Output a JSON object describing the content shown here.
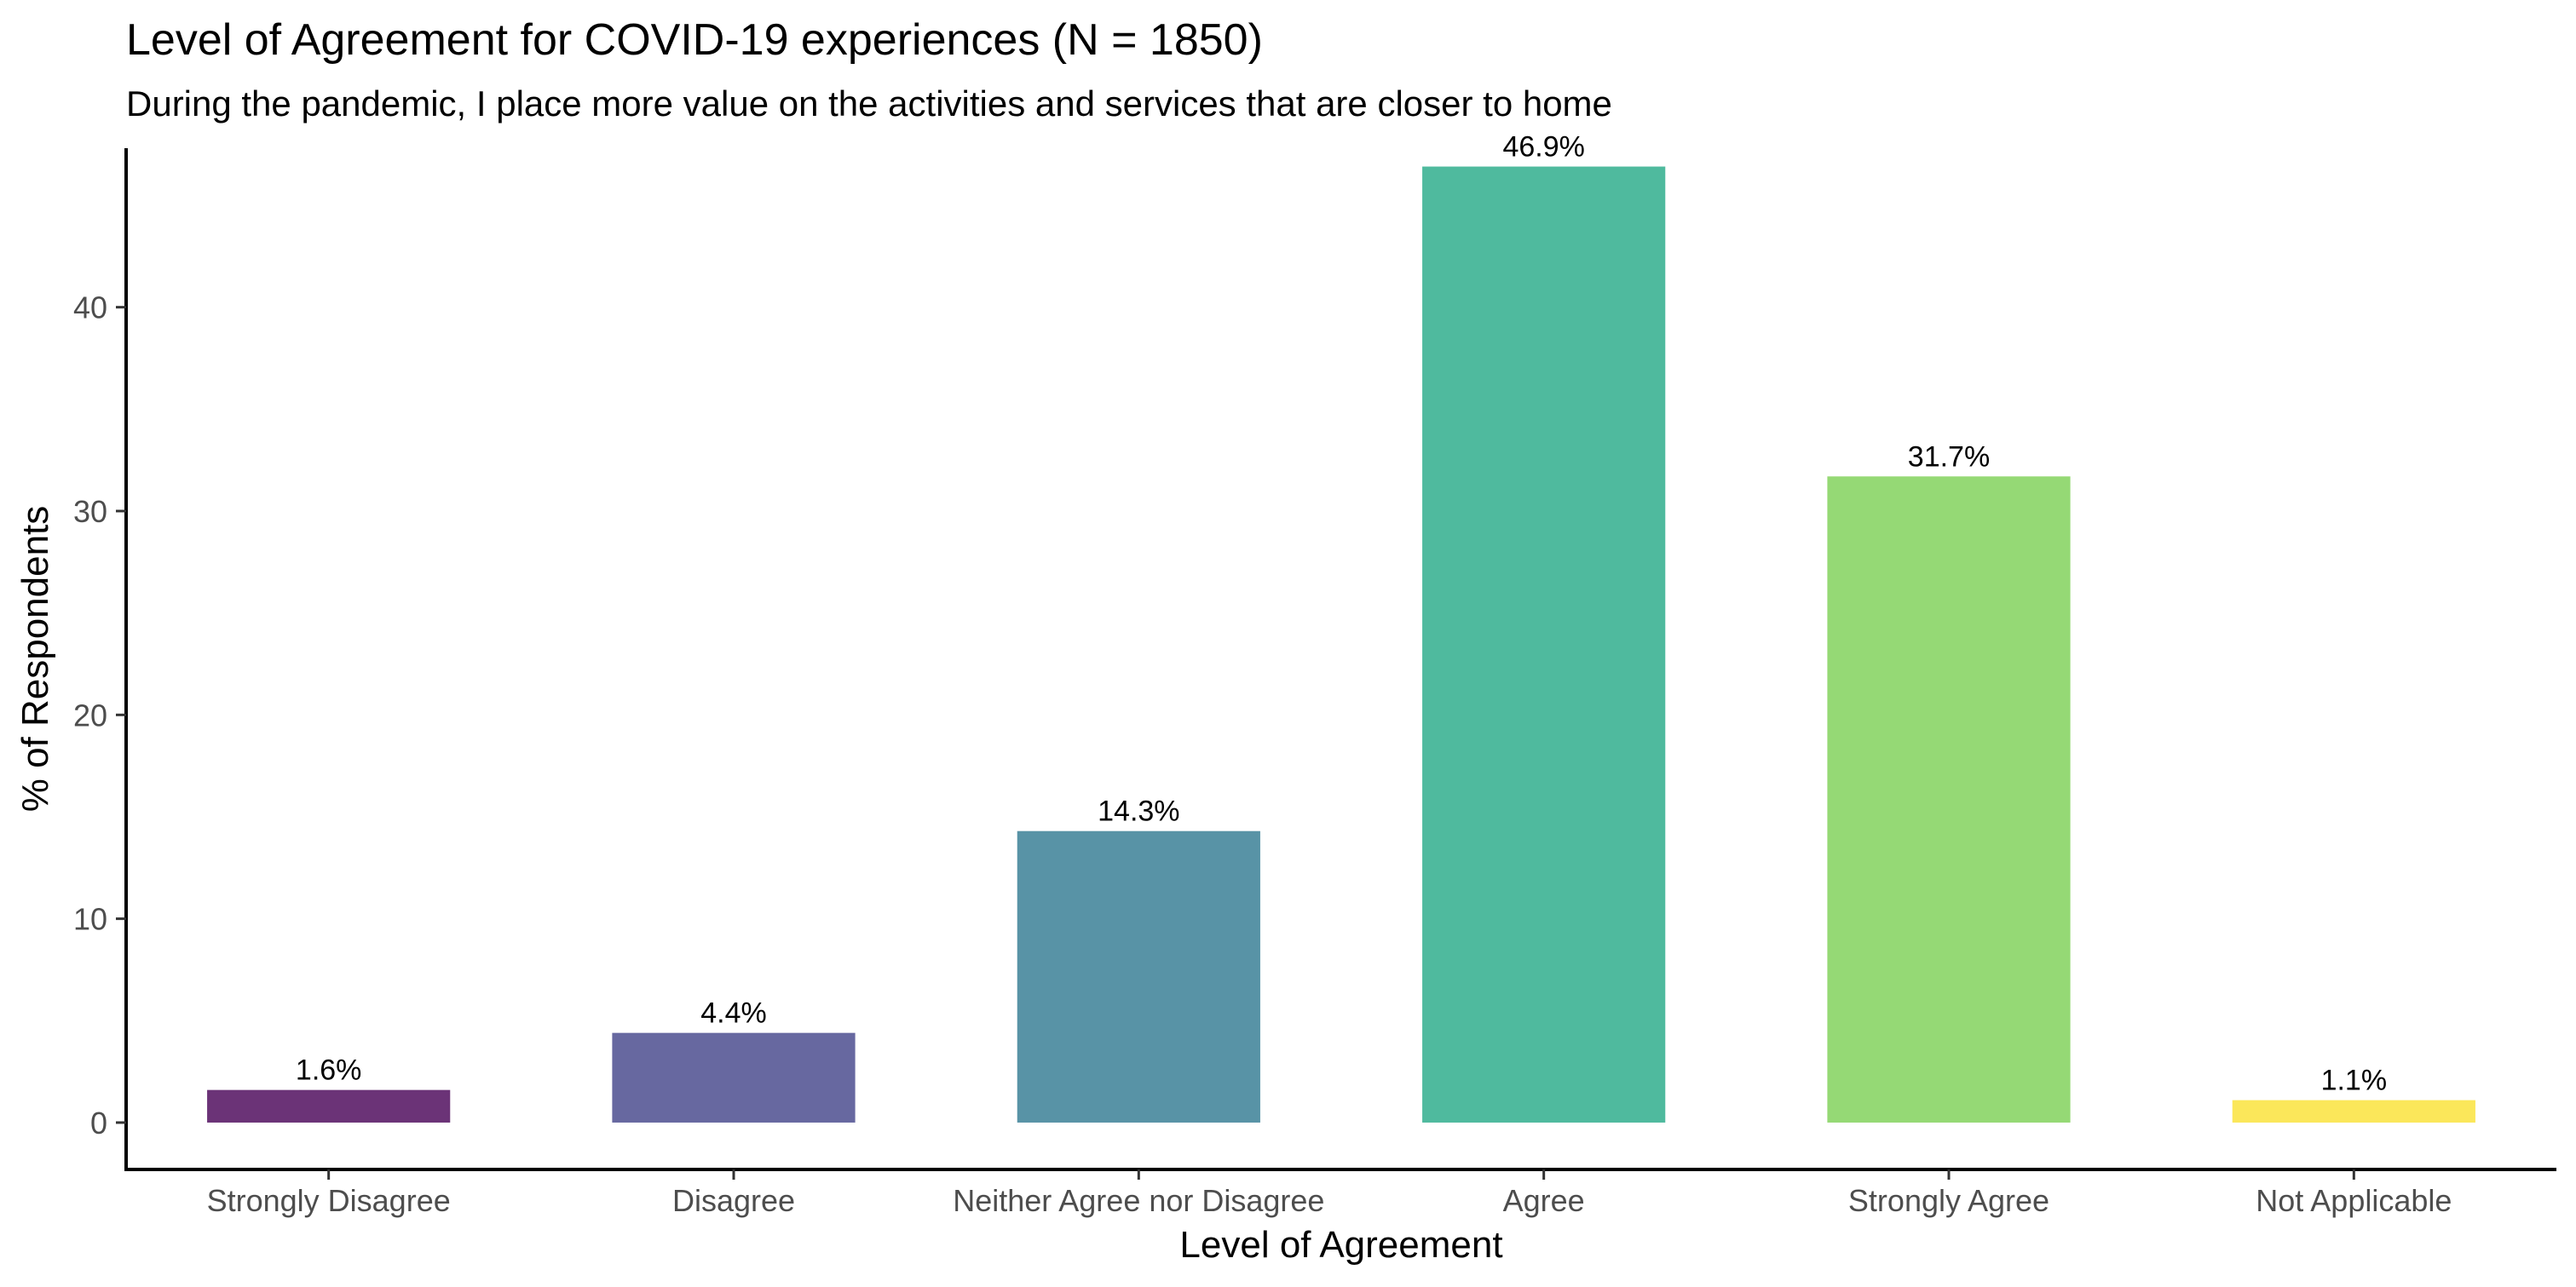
{
  "chart_data": {
    "type": "bar",
    "title": "Level of Agreement for COVID-19 experiences (N = 1850)",
    "subtitle": "During the pandemic, I place more value on the activities and services that are closer to home",
    "xlabel": "Level of Agreement",
    "ylabel": "% of Respondents",
    "categories": [
      "Strongly Disagree",
      "Disagree",
      "Neither Agree nor Disagree",
      "Agree",
      "Strongly Agree",
      "Not Applicable"
    ],
    "values": [
      1.6,
      4.4,
      14.3,
      46.9,
      31.7,
      1.1
    ],
    "value_labels": [
      "1.6%",
      "4.4%",
      "14.3%",
      "46.9%",
      "31.7%",
      "1.1%"
    ],
    "colors": [
      "#6b3377",
      "#6768a0",
      "#5893a6",
      "#4fba9e",
      "#95d975",
      "#fbe75a"
    ],
    "yticks": [
      0,
      10,
      20,
      30,
      40
    ],
    "ylim": [
      -2.3,
      47.8
    ],
    "grid": false,
    "legend": "none"
  }
}
